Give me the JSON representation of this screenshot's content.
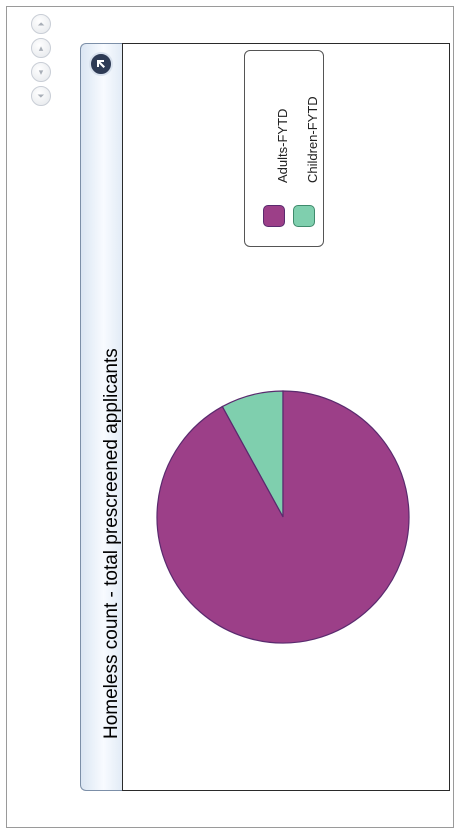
{
  "nav": {
    "buttons": [
      {
        "name": "first",
        "glyph": "⏶"
      },
      {
        "name": "previous",
        "glyph": "▴"
      },
      {
        "name": "next",
        "glyph": "▾"
      },
      {
        "name": "last",
        "glyph": "⏷"
      }
    ]
  },
  "colors": {
    "adults": "#9c3f88",
    "children": "#7fcfae",
    "pie_outline": "#5a2a6e"
  },
  "chart_data": {
    "type": "pie",
    "title": "Homeless count - total prescreened applicants",
    "legend_position": "top-right",
    "series": [
      {
        "name": "Adults-FYTD",
        "value": 92
      },
      {
        "name": "Children-FYTD",
        "value": 8
      }
    ]
  }
}
